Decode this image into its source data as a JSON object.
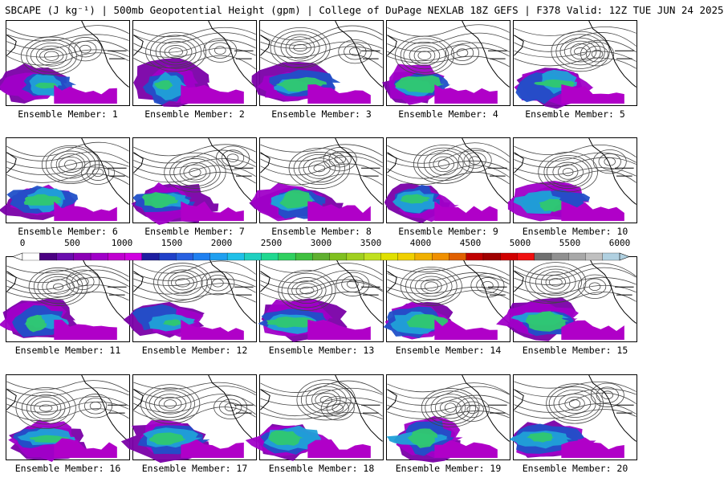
{
  "header": {
    "title": "SBCAPE (J kg⁻¹) | 500mb Geopotential Height (gpm) | College of DuPage NEXLAB 18Z GEFS | F378 Valid: 12Z TUE JUN 24 2025"
  },
  "colors": {
    "land": "#ffffff",
    "coast": "#000000",
    "contour": "#444444"
  },
  "panels": [
    {
      "label": "Ensemble Member: 1",
      "member": 1
    },
    {
      "label": "Ensemble Member: 2",
      "member": 2
    },
    {
      "label": "Ensemble Member: 3",
      "member": 3
    },
    {
      "label": "Ensemble Member: 4",
      "member": 4
    },
    {
      "label": "Ensemble Member: 5",
      "member": 5
    },
    {
      "label": "Ensemble Member: 6",
      "member": 6
    },
    {
      "label": "Ensemble Member: 7",
      "member": 7
    },
    {
      "label": "Ensemble Member: 8",
      "member": 8
    },
    {
      "label": "Ensemble Member: 9",
      "member": 9
    },
    {
      "label": "Ensemble Member: 10",
      "member": 10
    },
    {
      "label": "Ensemble Member: 11",
      "member": 11
    },
    {
      "label": "Ensemble Member: 12",
      "member": 12
    },
    {
      "label": "Ensemble Member: 13",
      "member": 13
    },
    {
      "label": "Ensemble Member: 14",
      "member": 14
    },
    {
      "label": "Ensemble Member: 15",
      "member": 15
    },
    {
      "label": "Ensemble Member: 16",
      "member": 16
    },
    {
      "label": "Ensemble Member: 17",
      "member": 17
    },
    {
      "label": "Ensemble Member: 18",
      "member": 18
    },
    {
      "label": "Ensemble Member: 19",
      "member": 19
    },
    {
      "label": "Ensemble Member: 20",
      "member": 20
    }
  ],
  "colorbar": {
    "ticks": [
      "0",
      "500",
      "1000",
      "1500",
      "2000",
      "2500",
      "3000",
      "3500",
      "4000",
      "4500",
      "5000",
      "5500",
      "6000"
    ],
    "min": 0,
    "max": 6000,
    "colors": [
      "#ffffff",
      "#4b0082",
      "#6a0dad",
      "#8b00b5",
      "#a000c8",
      "#c000d0",
      "#d000e0",
      "#1e1ea0",
      "#2040c8",
      "#2860e0",
      "#2080f0",
      "#20a0f0",
      "#20c0e8",
      "#20d0c0",
      "#20d890",
      "#30d060",
      "#40c040",
      "#60b030",
      "#80c020",
      "#a0d020",
      "#c0e020",
      "#e0e000",
      "#f0d000",
      "#f0b000",
      "#f09000",
      "#e06000",
      "#c00000",
      "#a00000",
      "#d00000",
      "#f01010",
      "#707070",
      "#909090",
      "#a8a8a8",
      "#c0c0c0",
      "#b0d0e0"
    ]
  }
}
